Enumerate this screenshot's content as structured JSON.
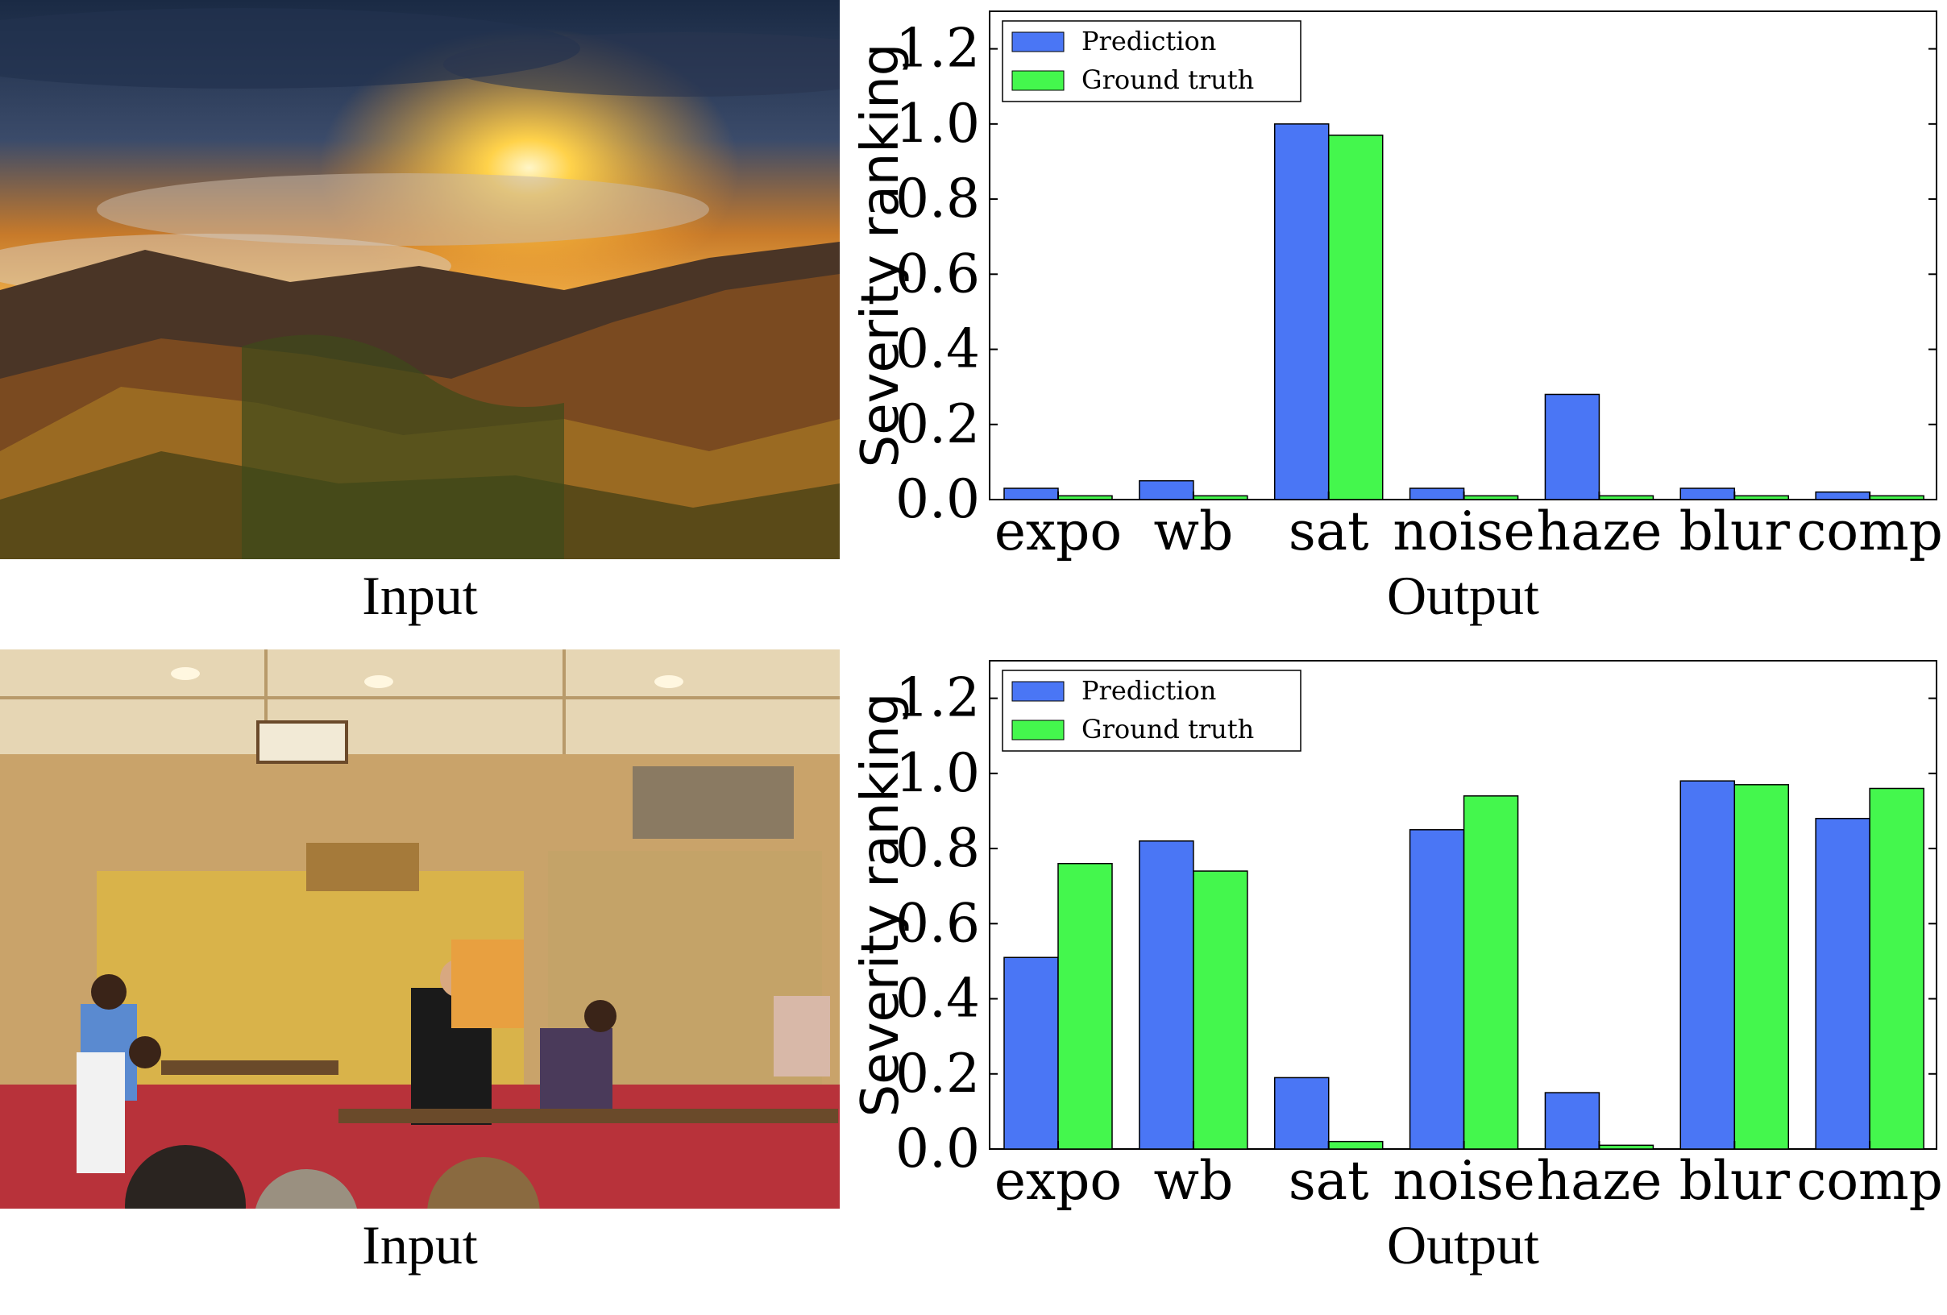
{
  "panels": [
    {
      "input_caption": "Input",
      "output_caption": "Output"
    },
    {
      "input_caption": "Input",
      "output_caption": "Output"
    }
  ],
  "chart_data": [
    {
      "type": "bar",
      "ylabel": "Severity ranking",
      "xlabel": "Output",
      "categories": [
        "expo",
        "wb",
        "sat",
        "noise",
        "haze",
        "blur",
        "comp"
      ],
      "ylim": [
        0,
        1.3
      ],
      "yticks": [
        "0.0",
        "0.2",
        "0.4",
        "0.6",
        "0.8",
        "1.0",
        "1.2"
      ],
      "legend_position": "top-left",
      "grid": false,
      "series": [
        {
          "name": "Prediction",
          "color": "#4a76f5",
          "values": [
            0.03,
            0.05,
            1.0,
            0.03,
            0.28,
            0.03,
            0.02
          ]
        },
        {
          "name": "Ground truth",
          "color": "#44f74d",
          "values": [
            0.01,
            0.01,
            0.97,
            0.01,
            0.01,
            0.01,
            0.01
          ]
        }
      ]
    },
    {
      "type": "bar",
      "ylabel": "Severity ranking",
      "xlabel": "Output",
      "categories": [
        "expo",
        "wb",
        "sat",
        "noise",
        "haze",
        "blur",
        "comp"
      ],
      "ylim": [
        0,
        1.3
      ],
      "yticks": [
        "0.0",
        "0.2",
        "0.4",
        "0.6",
        "0.8",
        "1.0",
        "1.2"
      ],
      "legend_position": "top-left",
      "grid": false,
      "series": [
        {
          "name": "Prediction",
          "color": "#4a76f5",
          "values": [
            0.51,
            0.82,
            0.19,
            0.85,
            0.15,
            0.98,
            0.88
          ]
        },
        {
          "name": "Ground truth",
          "color": "#44f74d",
          "values": [
            0.76,
            0.74,
            0.02,
            0.94,
            0.01,
            0.97,
            0.96
          ]
        }
      ]
    }
  ]
}
